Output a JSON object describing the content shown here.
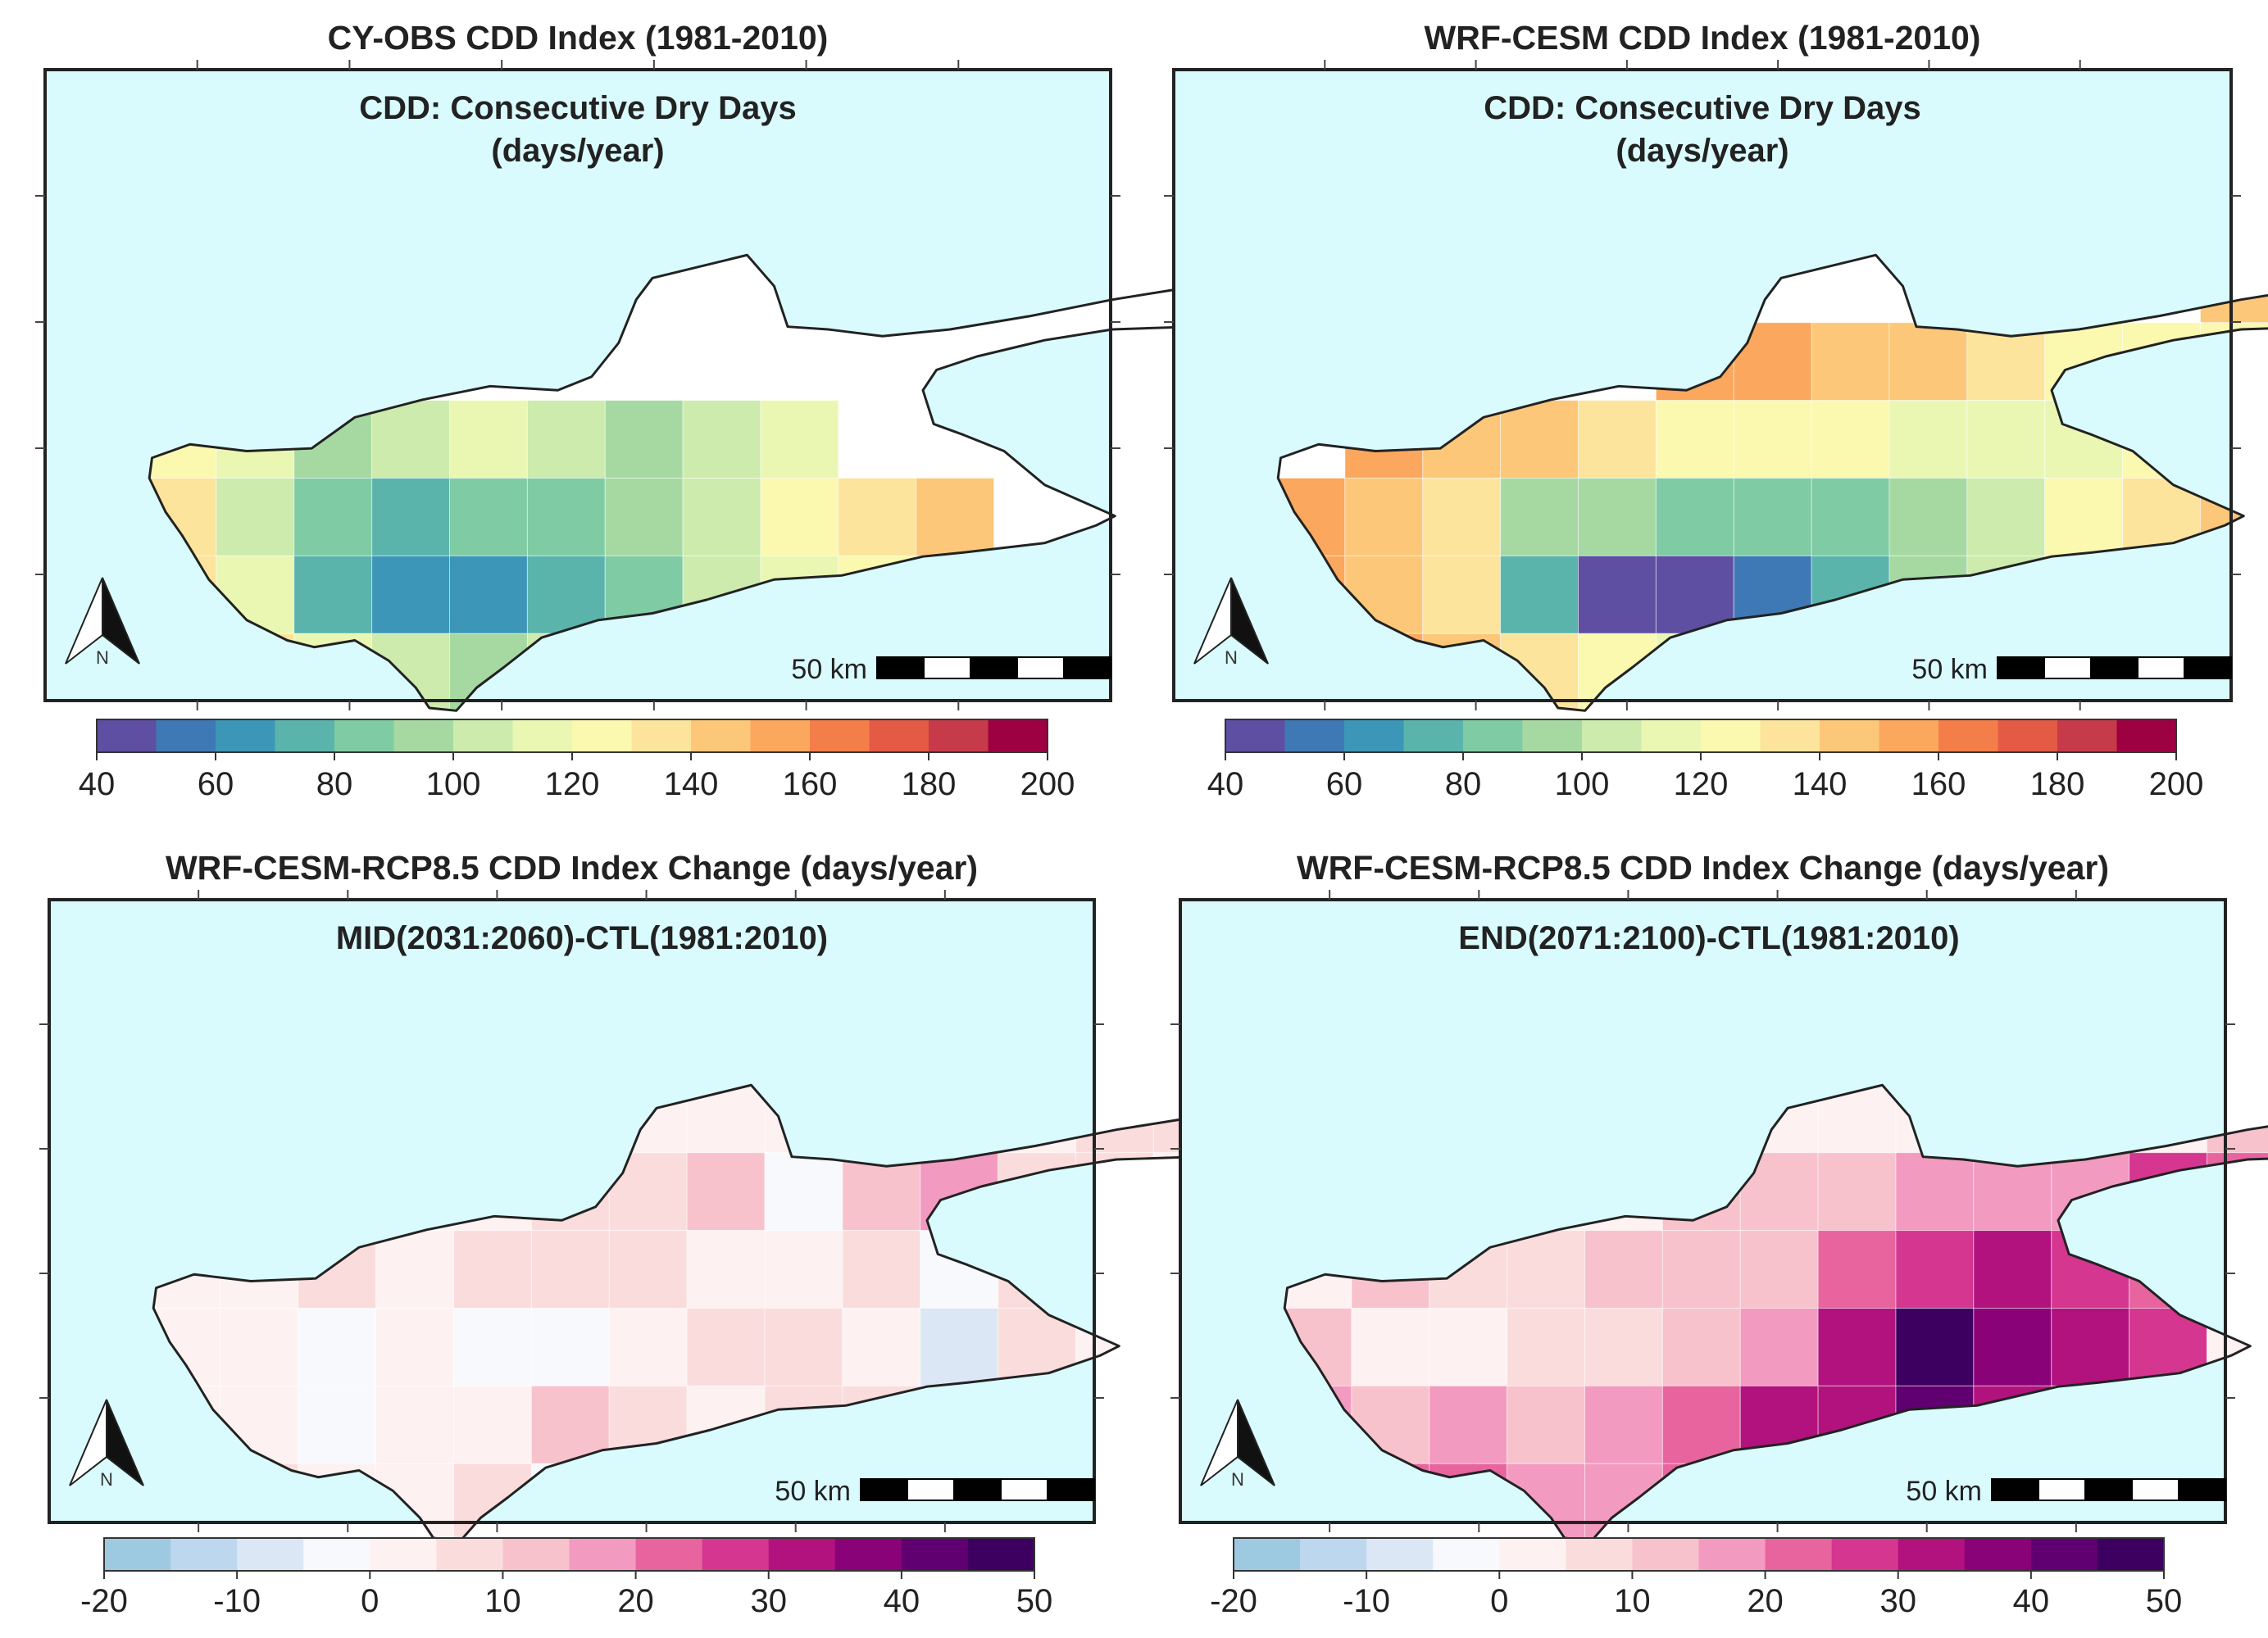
{
  "panels": [
    {
      "id": "obs",
      "title": "CY-OBS CDD Index (1981-2010)",
      "subtitle_lines": [
        "CDD: Consecutive Dry Days",
        "(days/year)"
      ],
      "colorbar": "cdd",
      "field": "obs"
    },
    {
      "id": "wrf",
      "title": "WRF-CESM CDD Index (1981-2010)",
      "subtitle_lines": [
        "CDD: Consecutive Dry Days",
        "(days/year)"
      ],
      "colorbar": "cdd",
      "field": "wrf"
    },
    {
      "id": "mid",
      "title": "WRF-CESM-RCP8.5 CDD Index Change (days/year)",
      "subtitle_lines": [
        "MID(2031:2060)-CTL(1981:2010)"
      ],
      "colorbar": "change",
      "field": "mid"
    },
    {
      "id": "end",
      "title": "WRF-CESM-RCP8.5 CDD Index Change (days/year)",
      "subtitle_lines": [
        "END(2071:2100)-CTL(1981:2010)"
      ],
      "colorbar": "change",
      "field": "end"
    }
  ],
  "scale_bar_label": "50 km",
  "north_arrow_label": "N",
  "colorbars": {
    "cdd": {
      "min": 40,
      "max": 200,
      "ticks": [
        "40",
        "60",
        "80",
        "100",
        "120",
        "140",
        "160",
        "180",
        "200"
      ],
      "colors": [
        "#5e4fa2",
        "#3f79b5",
        "#3c96b7",
        "#5ab4ac",
        "#7fcba4",
        "#a6d9a1",
        "#ccebad",
        "#eaf7b2",
        "#fbf8b0",
        "#fde49c",
        "#fdc779",
        "#fba75d",
        "#f47e49",
        "#e35a45",
        "#c73a4a",
        "#9e0142"
      ]
    },
    "change": {
      "min": -20,
      "max": 50,
      "ticks": [
        "-20",
        "-10",
        "0",
        "10",
        "20",
        "30",
        "40",
        "50"
      ],
      "colors": [
        "#9ecae1",
        "#bdd7ee",
        "#dbe7f5",
        "#f7f9fd",
        "#fdf2f1",
        "#fbdcdc",
        "#f8c2cd",
        "#f39ac0",
        "#e8649f",
        "#d43690",
        "#b1127d",
        "#8a0278",
        "#600070",
        "#3d0060"
      ]
    }
  },
  "chart_data": [
    {
      "type": "heatmap",
      "title": "CY-OBS CDD Index (1981-2010)",
      "annotation": "CDD: Consecutive Dry Days (days/year)",
      "units": "days/year",
      "range": [
        40,
        200
      ],
      "tick_labels": [
        40,
        60,
        80,
        100,
        120,
        140,
        160,
        180,
        200
      ],
      "grid_origin": "north-west",
      "grid_rows": 8,
      "grid_cols": 16,
      "values": [
        [
          0,
          0,
          0,
          0,
          0,
          0,
          0,
          0,
          0,
          0,
          0,
          0,
          0,
          0,
          0,
          0
        ],
        [
          0,
          0,
          0,
          0,
          0,
          0,
          0,
          0,
          0,
          0,
          0,
          0,
          0,
          0,
          0,
          0
        ],
        [
          0,
          0,
          0,
          0,
          0,
          0,
          0,
          0,
          0,
          0,
          0,
          0,
          0,
          0,
          0,
          0
        ],
        [
          125,
          110,
          95,
          100,
          115,
          105,
          95,
          100,
          110,
          0,
          0,
          0,
          0,
          0,
          0,
          0
        ],
        [
          130,
          100,
          80,
          75,
          85,
          80,
          95,
          105,
          120,
          135,
          140,
          0,
          0,
          0,
          0,
          0
        ],
        [
          130,
          110,
          75,
          60,
          62,
          70,
          85,
          100,
          115,
          125,
          0,
          0,
          0,
          0,
          0,
          0
        ],
        [
          0,
          135,
          115,
          100,
          95,
          105,
          115,
          125,
          0,
          0,
          0,
          0,
          0,
          0,
          0,
          0
        ],
        [
          0,
          0,
          0,
          145,
          140,
          0,
          0,
          0,
          0,
          0,
          0,
          0,
          0,
          0,
          0,
          0
        ]
      ]
    },
    {
      "type": "heatmap",
      "title": "WRF-CESM CDD Index (1981-2010)",
      "annotation": "CDD: Consecutive Dry Days (days/year)",
      "units": "days/year",
      "range": [
        40,
        200
      ],
      "tick_labels": [
        40,
        60,
        80,
        100,
        120,
        140,
        160,
        180,
        200
      ],
      "grid_origin": "north-west",
      "grid_rows": 8,
      "grid_cols": 16,
      "values": [
        [
          0,
          0,
          0,
          0,
          0,
          0,
          0,
          0,
          0,
          0,
          0,
          0,
          0,
          0,
          150,
          160
        ],
        [
          0,
          0,
          0,
          0,
          0,
          0,
          0,
          0,
          0,
          0,
          0,
          0,
          145,
          140,
          150,
          0
        ],
        [
          0,
          0,
          0,
          0,
          0,
          155,
          150,
          145,
          140,
          130,
          125,
          120,
          125,
          135,
          0,
          0
        ],
        [
          0,
          155,
          145,
          140,
          130,
          125,
          120,
          120,
          115,
          115,
          115,
          120,
          130,
          150,
          0,
          0
        ],
        [
          150,
          145,
          135,
          90,
          90,
          85,
          80,
          85,
          95,
          100,
          120,
          130,
          140,
          0,
          0,
          0
        ],
        [
          150,
          145,
          130,
          70,
          45,
          42,
          55,
          70,
          95,
          105,
          120,
          140,
          0,
          0,
          0,
          0
        ],
        [
          0,
          150,
          140,
          130,
          120,
          110,
          115,
          130,
          140,
          160,
          0,
          0,
          0,
          0,
          0,
          0
        ],
        [
          0,
          0,
          155,
          160,
          165,
          160,
          0,
          0,
          0,
          0,
          0,
          0,
          0,
          0,
          0,
          0
        ]
      ]
    },
    {
      "type": "heatmap",
      "title": "WRF-CESM-RCP8.5 CDD Index Change (days/year)",
      "annotation": "MID(2031:2060)-CTL(1981:2010)",
      "units": "days/year",
      "range": [
        -20,
        50
      ],
      "tick_labels": [
        -20,
        -10,
        0,
        10,
        20,
        30,
        40,
        50
      ],
      "grid_origin": "north-west",
      "grid_rows": 8,
      "grid_cols": 16,
      "values": [
        [
          0,
          0,
          0,
          0,
          0,
          0,
          0,
          0,
          0,
          0,
          0,
          0,
          0,
          0,
          2,
          0
        ],
        [
          0,
          0,
          0,
          0,
          0,
          0,
          0,
          0,
          0,
          0,
          0,
          0,
          5,
          6,
          8,
          0
        ],
        [
          0,
          0,
          0,
          0,
          0,
          5,
          8,
          10,
          -4,
          10,
          15,
          8,
          5,
          0,
          0,
          0
        ],
        [
          0,
          4,
          5,
          3,
          6,
          8,
          6,
          4,
          4,
          8,
          -2,
          5,
          0,
          0,
          0,
          0
        ],
        [
          3,
          2,
          -5,
          1,
          -1,
          -2,
          3,
          5,
          6,
          4,
          -6,
          5,
          0,
          0,
          0,
          0
        ],
        [
          4,
          4,
          -2,
          2,
          4,
          10,
          5,
          2,
          5,
          8,
          -3,
          4,
          0,
          0,
          0,
          0
        ],
        [
          0,
          5,
          4,
          3,
          6,
          -1,
          6,
          -4,
          4,
          0,
          0,
          0,
          0,
          0,
          0,
          0
        ],
        [
          0,
          0,
          5,
          6,
          4,
          0,
          0,
          0,
          0,
          0,
          0,
          0,
          0,
          0,
          0,
          0
        ]
      ]
    },
    {
      "type": "heatmap",
      "title": "WRF-CESM-RCP8.5 CDD Index Change (days/year)",
      "annotation": "END(2071:2100)-CTL(1981:2010)",
      "units": "days/year",
      "range": [
        -20,
        50
      ],
      "tick_labels": [
        -20,
        -10,
        0,
        10,
        20,
        30,
        40,
        50
      ],
      "grid_origin": "north-west",
      "grid_rows": 8,
      "grid_cols": 16,
      "values": [
        [
          0,
          0,
          0,
          0,
          0,
          0,
          0,
          0,
          0,
          0,
          0,
          0,
          0,
          0,
          4,
          0
        ],
        [
          0,
          0,
          0,
          0,
          0,
          0,
          0,
          0,
          0,
          0,
          0,
          0,
          12,
          15,
          18,
          0
        ],
        [
          0,
          0,
          0,
          0,
          0,
          10,
          12,
          14,
          18,
          15,
          18,
          25,
          20,
          0,
          0,
          0
        ],
        [
          0,
          10,
          8,
          6,
          10,
          12,
          14,
          22,
          28,
          30,
          25,
          22,
          28,
          0,
          0,
          0
        ],
        [
          10,
          4,
          2,
          5,
          8,
          12,
          18,
          32,
          45,
          35,
          30,
          25,
          0,
          0,
          0,
          0
        ],
        [
          15,
          12,
          18,
          10,
          15,
          22,
          32,
          30,
          40,
          30,
          25,
          20,
          0,
          0,
          0,
          0
        ],
        [
          0,
          22,
          20,
          18,
          15,
          20,
          30,
          32,
          28,
          0,
          0,
          0,
          0,
          0,
          0,
          0
        ],
        [
          0,
          0,
          18,
          22,
          20,
          0,
          0,
          0,
          0,
          0,
          0,
          0,
          0,
          0,
          0,
          0
        ]
      ]
    }
  ]
}
